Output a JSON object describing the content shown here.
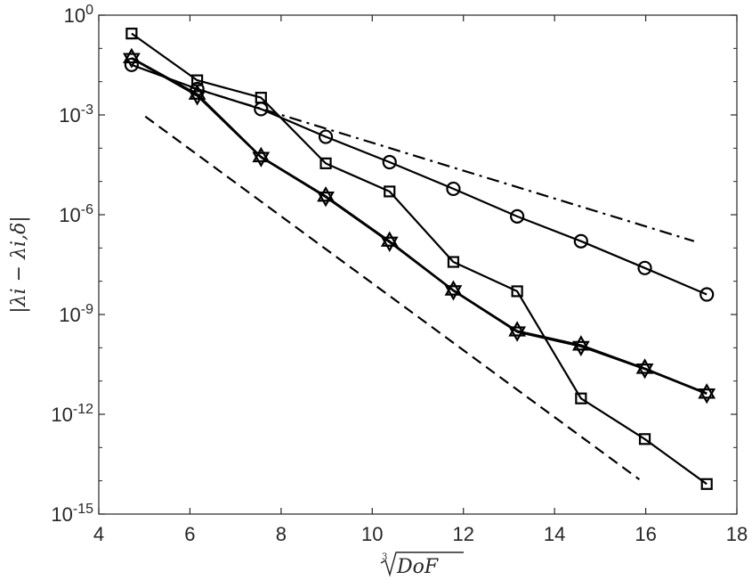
{
  "chart_data": {
    "type": "line",
    "title": "",
    "xlabel": "∛DoF",
    "ylabel": "|λi − λi,δ|",
    "xlim": [
      4,
      18
    ],
    "ylim": [
      1e-15,
      1
    ],
    "yscale": "log",
    "grid": false,
    "legend": "none",
    "x_ticks": [
      4,
      6,
      8,
      10,
      12,
      14,
      16,
      18
    ],
    "y_ticks": [
      {
        "value": 1,
        "base": "10",
        "exp": "0"
      },
      {
        "value": 0.001,
        "base": "10",
        "exp": "-3"
      },
      {
        "value": 1e-06,
        "base": "10",
        "exp": "-6"
      },
      {
        "value": 1e-09,
        "base": "10",
        "exp": "-9"
      },
      {
        "value": 1e-12,
        "base": "10",
        "exp": "-12"
      },
      {
        "value": 1e-15,
        "base": "10",
        "exp": "-15"
      }
    ],
    "series": [
      {
        "marker": "circle",
        "color": "#000000",
        "x": [
          4.72,
          6.16,
          7.56,
          8.98,
          10.38,
          11.78,
          13.18,
          14.58,
          15.98,
          17.34
        ],
        "y": [
          0.032,
          0.006,
          0.0015,
          0.00022,
          3.8e-05,
          6e-06,
          8.9e-07,
          1.6e-07,
          2.5e-08,
          4e-09
        ]
      },
      {
        "marker": "square",
        "color": "#000000",
        "x": [
          4.72,
          6.16,
          7.56,
          8.98,
          10.38,
          11.78,
          13.18,
          14.58,
          15.98,
          17.34
        ],
        "y": [
          0.28,
          0.011,
          0.0033,
          3.5e-05,
          5e-06,
          3.8e-08,
          5e-09,
          3e-12,
          1.8e-13,
          8e-15
        ]
      },
      {
        "marker": "triangle-up",
        "color": "#000000",
        "x": [
          4.72,
          6.16,
          7.56,
          8.98,
          10.38,
          11.78,
          13.18,
          14.58,
          15.98,
          17.34
        ],
        "y": [
          0.052,
          0.0042,
          5.5e-05,
          3.6e-06,
          1.6e-07,
          5.4e-09,
          3.2e-10,
          1.2e-10,
          2.4e-11,
          4.3e-12
        ]
      },
      {
        "marker": "triangle-down",
        "color": "#000000",
        "x": [
          4.72,
          6.16,
          7.56,
          8.98,
          10.38,
          11.78,
          13.18,
          14.58,
          15.98,
          17.34
        ],
        "y": [
          0.05,
          0.0038,
          5.3e-05,
          3.4e-06,
          1.5e-07,
          5.2e-09,
          3e-10,
          1.1e-10,
          2.3e-11,
          4.1e-12
        ]
      }
    ],
    "reference_lines": [
      {
        "style": "dashdot",
        "x": [
          6.02,
          17.06
        ],
        "y": [
          0.0068,
          1.6e-07
        ]
      },
      {
        "style": "dashed",
        "x": [
          5.02,
          15.86
        ],
        "y": [
          0.0009,
          1.1e-14
        ]
      }
    ]
  }
}
